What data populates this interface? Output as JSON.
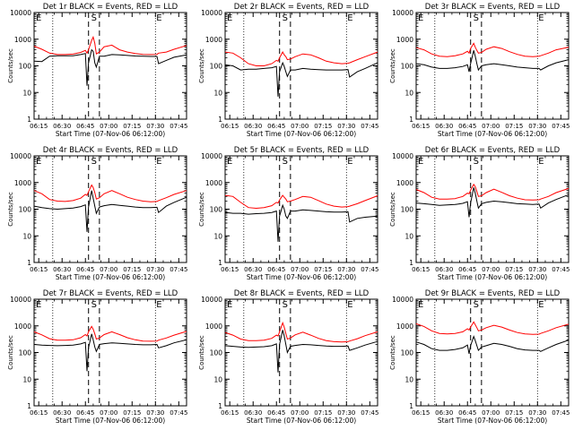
{
  "figure": {
    "time_range": [
      "06:12",
      "07:50"
    ],
    "y_range": [
      1,
      10000
    ],
    "y_scale": "log",
    "x_ticks": [
      "06:15",
      "06:30",
      "06:45",
      "07:00",
      "07:15",
      "07:30",
      "07:45"
    ],
    "y_ticks": [
      "1",
      "10",
      "100",
      "1000",
      "10000"
    ],
    "ylabel": "Counts/sec",
    "colors": {
      "events": "#000000",
      "lld": "#ff0000"
    },
    "markers": {
      "s_label": "S",
      "e_label": "E"
    },
    "common_markers": {
      "dotted_minutes": [
        12,
        78
      ],
      "dashed_minutes": [
        35,
        42
      ],
      "s_minute": 38.5
    }
  },
  "chart_data": [
    {
      "type": "line",
      "title": "Det 1r BLACK = Events, RED = LLD",
      "xlabel": "Start Time (07-Nov-06 06:12:00)",
      "e_minute": 78,
      "x": [
        0,
        5,
        10,
        15,
        20,
        25,
        30,
        33,
        34,
        35,
        37,
        38,
        39,
        40,
        42,
        45,
        50,
        55,
        60,
        65,
        70,
        75,
        79,
        80,
        85,
        90,
        98
      ],
      "series": [
        {
          "name": "Events",
          "values": [
            150,
            145,
            230,
            240,
            240,
            240,
            265,
            290,
            18,
            130,
            400,
            350,
            130,
            90,
            230,
            230,
            265,
            260,
            245,
            235,
            230,
            225,
            225,
            120,
            160,
            210,
            260
          ]
        },
        {
          "name": "LLD",
          "values": [
            550,
            420,
            300,
            265,
            265,
            275,
            320,
            380,
            300,
            400,
            900,
            1200,
            700,
            280,
            330,
            520,
            600,
            400,
            330,
            290,
            270,
            265,
            270,
            300,
            330,
            420,
            580
          ]
        }
      ]
    },
    {
      "type": "line",
      "title": "Det 2r BLACK = Events, RED = LLD",
      "xlabel": "Start Time (07-Nov-06 06:12:00)",
      "e_minute": 78,
      "x": [
        0,
        5,
        10,
        15,
        20,
        25,
        30,
        33,
        34,
        35,
        37,
        38,
        39,
        40,
        42,
        45,
        50,
        55,
        60,
        65,
        70,
        75,
        79,
        80,
        85,
        90,
        98
      ],
      "series": [
        {
          "name": "Events",
          "values": [
            110,
            100,
            70,
            75,
            75,
            80,
            85,
            95,
            7,
            60,
            130,
            95,
            60,
            40,
            70,
            70,
            80,
            75,
            72,
            70,
            70,
            70,
            72,
            38,
            60,
            80,
            130
          ]
        },
        {
          "name": "LLD",
          "values": [
            330,
            300,
            200,
            120,
            100,
            100,
            120,
            160,
            150,
            200,
            330,
            260,
            220,
            170,
            180,
            220,
            280,
            260,
            200,
            150,
            130,
            120,
            125,
            130,
            170,
            220,
            330
          ]
        }
      ]
    },
    {
      "type": "line",
      "title": "Det 3r BLACK = Events, RED = LLD",
      "xlabel": "Start Time (07-Nov-06 06:12:00)",
      "e_minute": 78,
      "x": [
        0,
        5,
        10,
        15,
        20,
        25,
        30,
        33,
        34,
        35,
        37,
        38,
        39,
        40,
        42,
        45,
        50,
        55,
        60,
        65,
        70,
        75,
        79,
        80,
        85,
        90,
        98
      ],
      "series": [
        {
          "name": "Events",
          "values": [
            120,
            110,
            90,
            80,
            80,
            85,
            95,
            110,
            60,
            120,
            380,
            230,
            120,
            70,
            100,
            110,
            120,
            110,
            100,
            90,
            85,
            80,
            80,
            70,
            100,
            130,
            170
          ]
        },
        {
          "name": "LLD",
          "values": [
            480,
            400,
            280,
            230,
            220,
            240,
            280,
            350,
            300,
            450,
            700,
            500,
            380,
            300,
            320,
            420,
            520,
            450,
            340,
            270,
            230,
            220,
            230,
            240,
            300,
            400,
            500
          ]
        }
      ]
    },
    {
      "type": "line",
      "title": "Det 4r BLACK = Events, RED = LLD",
      "xlabel": "Start Time (07-Nov-06 06:12:00)",
      "e_minute": 78,
      "x": [
        0,
        5,
        10,
        15,
        20,
        25,
        30,
        33,
        34,
        35,
        37,
        38,
        39,
        40,
        42,
        45,
        50,
        55,
        60,
        65,
        70,
        75,
        79,
        80,
        85,
        90,
        98
      ],
      "series": [
        {
          "name": "Events",
          "values": [
            130,
            115,
            105,
            100,
            105,
            110,
            125,
            145,
            14,
            120,
            500,
            260,
            130,
            70,
            120,
            135,
            150,
            140,
            130,
            120,
            115,
            115,
            118,
            75,
            130,
            180,
            280
          ]
        },
        {
          "name": "LLD",
          "values": [
            500,
            380,
            230,
            200,
            195,
            210,
            260,
            360,
            330,
            450,
            800,
            650,
            420,
            240,
            270,
            380,
            500,
            380,
            280,
            230,
            200,
            190,
            195,
            210,
            270,
            360,
            500
          ]
        }
      ]
    },
    {
      "type": "line",
      "title": "Det 5r BLACK = Events, RED = LLD",
      "xlabel": "Start Time (07-Nov-06 06:12:00)",
      "e_minute": 78,
      "x": [
        0,
        5,
        10,
        15,
        20,
        25,
        30,
        33,
        34,
        35,
        37,
        38,
        39,
        40,
        42,
        45,
        50,
        55,
        60,
        65,
        70,
        75,
        79,
        80,
        85,
        90,
        98
      ],
      "series": [
        {
          "name": "Events",
          "values": [
            75,
            70,
            70,
            65,
            68,
            70,
            75,
            85,
            6,
            55,
            140,
            100,
            55,
            45,
            85,
            85,
            95,
            90,
            85,
            80,
            78,
            78,
            80,
            33,
            45,
            50,
            55
          ]
        },
        {
          "name": "LLD",
          "values": [
            330,
            300,
            180,
            115,
            108,
            115,
            135,
            180,
            170,
            220,
            330,
            280,
            240,
            190,
            200,
            230,
            300,
            280,
            210,
            155,
            130,
            120,
            125,
            130,
            160,
            210,
            320
          ]
        }
      ]
    },
    {
      "type": "line",
      "title": "Det 6r BLACK = Events, RED = LLD",
      "xlabel": "Start Time (07-Nov-06 06:12:00)",
      "e_minute": 78,
      "x": [
        0,
        5,
        10,
        15,
        20,
        25,
        30,
        33,
        34,
        35,
        37,
        38,
        39,
        40,
        42,
        45,
        50,
        55,
        60,
        65,
        70,
        75,
        79,
        80,
        85,
        90,
        98
      ],
      "series": [
        {
          "name": "Events",
          "values": [
            170,
            160,
            150,
            140,
            145,
            150,
            165,
            190,
            50,
            170,
            650,
            400,
            200,
            110,
            160,
            180,
            200,
            190,
            175,
            160,
            155,
            150,
            155,
            110,
            170,
            230,
            350
          ]
        },
        {
          "name": "LLD",
          "values": [
            550,
            420,
            280,
            240,
            240,
            250,
            300,
            400,
            380,
            520,
            850,
            700,
            460,
            300,
            320,
            420,
            560,
            430,
            320,
            260,
            225,
            220,
            225,
            240,
            300,
            420,
            600
          ]
        }
      ]
    },
    {
      "type": "line",
      "title": "Det 7r BLACK = Events, RED = LLD",
      "xlabel": "Start Time (07-Nov-06 06:12:00)",
      "e_minute": 78,
      "x": [
        0,
        5,
        10,
        15,
        20,
        25,
        30,
        33,
        34,
        35,
        37,
        38,
        39,
        40,
        42,
        45,
        50,
        55,
        60,
        65,
        70,
        75,
        79,
        80,
        85,
        90,
        98
      ],
      "series": [
        {
          "name": "Events",
          "values": [
            200,
            190,
            185,
            180,
            185,
            190,
            210,
            240,
            20,
            150,
            500,
            300,
            160,
            110,
            200,
            215,
            230,
            220,
            210,
            200,
            195,
            195,
            200,
            150,
            180,
            230,
            300
          ]
        },
        {
          "name": "LLD",
          "values": [
            600,
            460,
            330,
            290,
            290,
            300,
            360,
            470,
            420,
            600,
            950,
            750,
            500,
            320,
            350,
            470,
            600,
            470,
            360,
            300,
            270,
            265,
            270,
            290,
            350,
            450,
            620
          ]
        }
      ]
    },
    {
      "type": "line",
      "title": "Det 8r BLACK = Events, RED = LLD",
      "xlabel": "Start Time (07-Nov-06 06:12:00)",
      "e_minute": 78,
      "x": [
        0,
        5,
        10,
        15,
        20,
        25,
        30,
        33,
        34,
        35,
        37,
        38,
        39,
        40,
        42,
        45,
        50,
        55,
        60,
        65,
        70,
        75,
        79,
        80,
        85,
        90,
        98
      ],
      "series": [
        {
          "name": "Events",
          "values": [
            180,
            170,
            160,
            155,
            160,
            165,
            180,
            210,
            18,
            200,
            700,
            420,
            200,
            100,
            170,
            185,
            200,
            195,
            185,
            175,
            170,
            170,
            175,
            120,
            150,
            190,
            260
          ]
        },
        {
          "name": "LLD",
          "values": [
            560,
            450,
            320,
            280,
            280,
            290,
            340,
            450,
            420,
            600,
            1300,
            900,
            520,
            320,
            350,
            460,
            580,
            450,
            340,
            280,
            255,
            250,
            255,
            270,
            330,
            430,
            600
          ]
        }
      ]
    },
    {
      "type": "line",
      "title": "Det 9r BLACK = Events, RED = LLD",
      "xlabel": "Start Time (07-Nov-06 06:12:00)",
      "e_minute": 78,
      "x": [
        0,
        5,
        10,
        15,
        20,
        25,
        30,
        33,
        34,
        35,
        37,
        38,
        39,
        40,
        42,
        45,
        50,
        55,
        60,
        65,
        70,
        75,
        79,
        80,
        85,
        90,
        98
      ],
      "series": [
        {
          "name": "Events",
          "values": [
            250,
            200,
            140,
            120,
            120,
            130,
            150,
            190,
            90,
            180,
            400,
            280,
            180,
            120,
            160,
            180,
            220,
            200,
            170,
            140,
            125,
            120,
            120,
            110,
            150,
            200,
            290
          ]
        },
        {
          "name": "LLD",
          "values": [
            1200,
            950,
            650,
            520,
            500,
            520,
            600,
            780,
            700,
            900,
            1400,
            1100,
            850,
            650,
            700,
            850,
            1050,
            900,
            700,
            560,
            500,
            480,
            490,
            520,
            650,
            850,
            1150
          ]
        }
      ]
    }
  ]
}
